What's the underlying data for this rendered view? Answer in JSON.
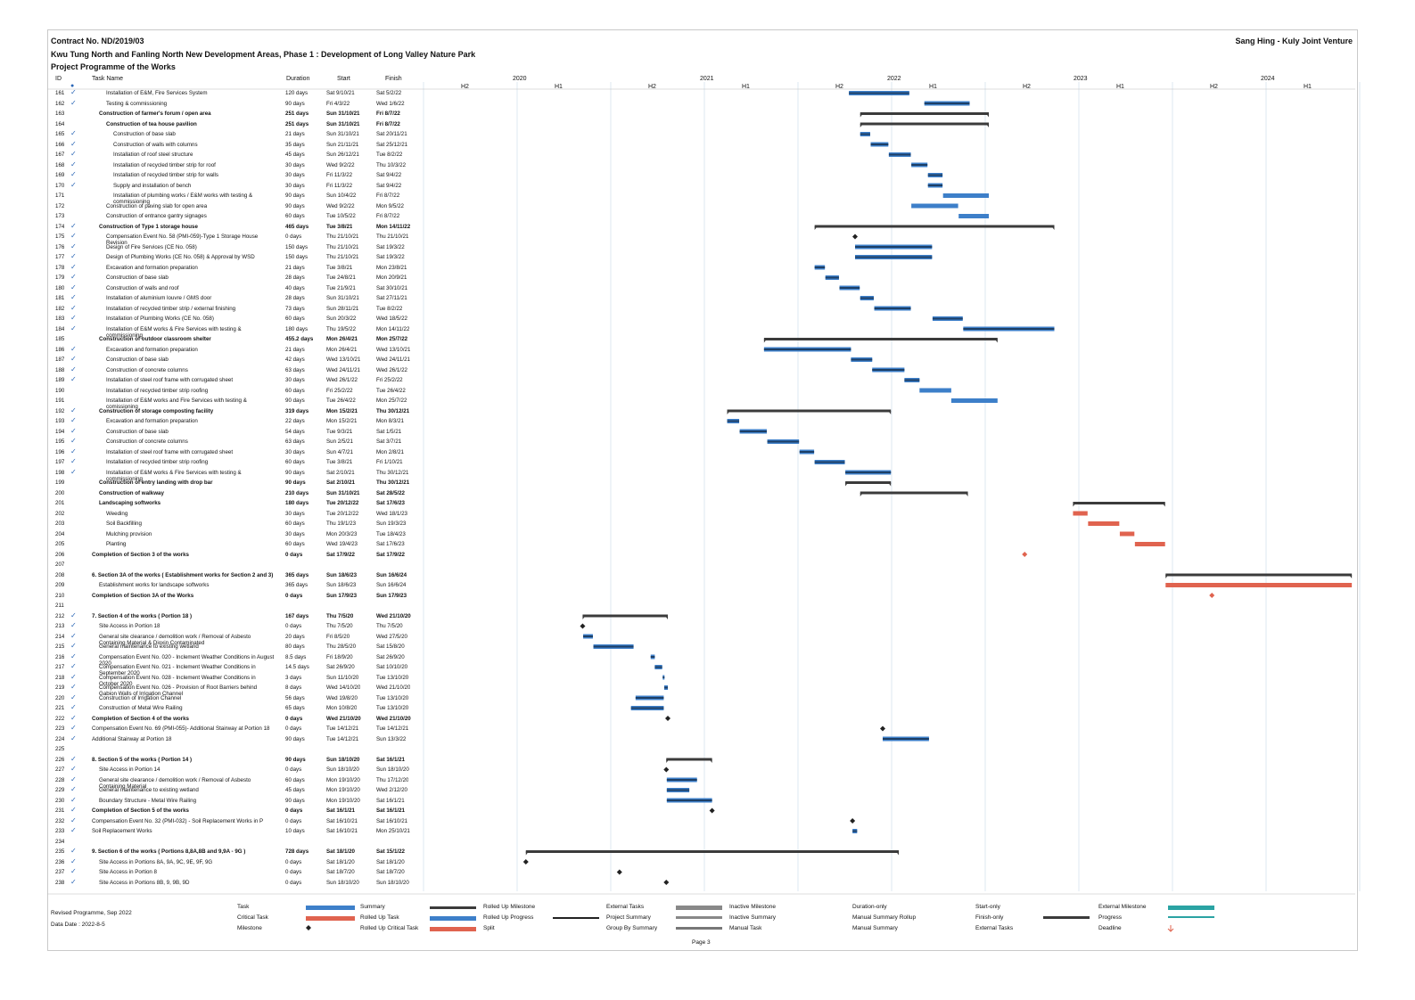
{
  "header": {
    "contract": "Contract No. ND/2019/03",
    "project": "Kwu Tung North and Fanling North New Development Areas, Phase 1 : Development of Long Valley Nature Park",
    "programme": "Project Programme of the Works",
    "company": "Sang Hing - Kuly Joint Venture"
  },
  "columns": {
    "id": "ID",
    "task": "Task Name",
    "duration": "Duration",
    "start": "Start",
    "finish": "Finish"
  },
  "timeline": {
    "years": [
      "2020",
      "2021",
      "2022",
      "2023",
      "2024"
    ],
    "halves": [
      "H2",
      "H1",
      "H2",
      "H1",
      "H2",
      "H1",
      "H2",
      "H1",
      "H2",
      "H1"
    ]
  },
  "tasks": [
    {
      "id": "161",
      "name": "Installation of E&M, Fire Services System",
      "dur": "120 days",
      "start": "Sat 9/10/21",
      "finish": "Sat 5/2/22",
      "indent": 2,
      "bold": false,
      "done": true
    },
    {
      "id": "162",
      "name": "Testing & commissioning",
      "dur": "90 days",
      "start": "Fri 4/3/22",
      "finish": "Wed 1/6/22",
      "indent": 2,
      "bold": false,
      "done": true
    },
    {
      "id": "163",
      "name": "Construction of farmer's forum / open area",
      "dur": "251 days",
      "start": "Sun 31/10/21",
      "finish": "Fri 8/7/22",
      "indent": 1,
      "bold": true,
      "done": false
    },
    {
      "id": "164",
      "name": "Construction of tea house pavilion",
      "dur": "251 days",
      "start": "Sun 31/10/21",
      "finish": "Fri 8/7/22",
      "indent": 2,
      "bold": true,
      "done": false
    },
    {
      "id": "165",
      "name": "Construction of base slab",
      "dur": "21 days",
      "start": "Sun 31/10/21",
      "finish": "Sat 20/11/21",
      "indent": 3,
      "bold": false,
      "done": true
    },
    {
      "id": "166",
      "name": "Construction of walls with columns",
      "dur": "35 days",
      "start": "Sun 21/11/21",
      "finish": "Sat 25/12/21",
      "indent": 3,
      "bold": false,
      "done": true
    },
    {
      "id": "167",
      "name": "Installation of roof steel structure",
      "dur": "45 days",
      "start": "Sun 26/12/21",
      "finish": "Tue 8/2/22",
      "indent": 3,
      "bold": false,
      "done": true
    },
    {
      "id": "168",
      "name": "Installation of recycled timber strip for roof",
      "dur": "30 days",
      "start": "Wed 9/2/22",
      "finish": "Thu 10/3/22",
      "indent": 3,
      "bold": false,
      "done": true
    },
    {
      "id": "169",
      "name": "Installation of recycled timber strip for walls",
      "dur": "30 days",
      "start": "Fri 11/3/22",
      "finish": "Sat 9/4/22",
      "indent": 3,
      "bold": false,
      "done": true
    },
    {
      "id": "170",
      "name": "Supply and installation of bench",
      "dur": "30 days",
      "start": "Fri 11/3/22",
      "finish": "Sat 9/4/22",
      "indent": 3,
      "bold": false,
      "done": true
    },
    {
      "id": "171",
      "name": "Installation of plumbing works / E&M works with testing & commissioning",
      "dur": "90 days",
      "start": "Sun 10/4/22",
      "finish": "Fri 8/7/22",
      "indent": 3,
      "bold": false,
      "done": false
    },
    {
      "id": "172",
      "name": "Construction of paving slab for open area",
      "dur": "90 days",
      "start": "Wed 9/2/22",
      "finish": "Mon 9/5/22",
      "indent": 2,
      "bold": false,
      "done": false
    },
    {
      "id": "173",
      "name": "Construction of entrance gantry signages",
      "dur": "60 days",
      "start": "Tue 10/5/22",
      "finish": "Fri 8/7/22",
      "indent": 2,
      "bold": false,
      "done": false
    },
    {
      "id": "174",
      "name": "Construction of Type 1 storage house",
      "dur": "465 days",
      "start": "Tue 3/8/21",
      "finish": "Mon 14/11/22",
      "indent": 1,
      "bold": true,
      "done": true
    },
    {
      "id": "175",
      "name": "Compensation Event No. 58 (PMI-059)-Type 1 Storage House Revision",
      "dur": "0 days",
      "start": "Thu 21/10/21",
      "finish": "Thu 21/10/21",
      "indent": 2,
      "bold": false,
      "done": true
    },
    {
      "id": "176",
      "name": "Design of Fire Services (CE No. 058)",
      "dur": "150 days",
      "start": "Thu 21/10/21",
      "finish": "Sat 19/3/22",
      "indent": 2,
      "bold": false,
      "done": true
    },
    {
      "id": "177",
      "name": "Design of Plumbing Works (CE No. 058) & Approval by WSD",
      "dur": "150 days",
      "start": "Thu 21/10/21",
      "finish": "Sat 19/3/22",
      "indent": 2,
      "bold": false,
      "done": true
    },
    {
      "id": "178",
      "name": "Excavation and formation preparation",
      "dur": "21 days",
      "start": "Tue 3/8/21",
      "finish": "Mon 23/8/21",
      "indent": 2,
      "bold": false,
      "done": true
    },
    {
      "id": "179",
      "name": "Construction of base slab",
      "dur": "28 days",
      "start": "Tue 24/8/21",
      "finish": "Mon 20/9/21",
      "indent": 2,
      "bold": false,
      "done": true
    },
    {
      "id": "180",
      "name": "Construction of walls and roof",
      "dur": "40 days",
      "start": "Tue 21/9/21",
      "finish": "Sat 30/10/21",
      "indent": 2,
      "bold": false,
      "done": true
    },
    {
      "id": "181",
      "name": "Installation of aluminium louvre / GMS door",
      "dur": "28 days",
      "start": "Sun 31/10/21",
      "finish": "Sat 27/11/21",
      "indent": 2,
      "bold": false,
      "done": true
    },
    {
      "id": "182",
      "name": "Installation of recycled timber strip / external finishing",
      "dur": "73 days",
      "start": "Sun 28/11/21",
      "finish": "Tue 8/2/22",
      "indent": 2,
      "bold": false,
      "done": true
    },
    {
      "id": "183",
      "name": "Installation of Plumbing Works (CE No. 058)",
      "dur": "60 days",
      "start": "Sun 20/3/22",
      "finish": "Wed 18/5/22",
      "indent": 2,
      "bold": false,
      "done": true
    },
    {
      "id": "184",
      "name": "Installation of E&M works & Fire Services with testing & commissioning",
      "dur": "180 days",
      "start": "Thu 19/5/22",
      "finish": "Mon 14/11/22",
      "indent": 2,
      "bold": false,
      "done": true
    },
    {
      "id": "185",
      "name": "Construction of outdoor classroom shelter",
      "dur": "455.2 days",
      "start": "Mon 26/4/21",
      "finish": "Mon 25/7/22",
      "indent": 1,
      "bold": true,
      "done": false
    },
    {
      "id": "186",
      "name": "Excavation and formation preparation",
      "dur": "21 days",
      "start": "Mon 26/4/21",
      "finish": "Wed 13/10/21",
      "indent": 2,
      "bold": false,
      "done": true
    },
    {
      "id": "187",
      "name": "Construction of base slab",
      "dur": "42 days",
      "start": "Wed 13/10/21",
      "finish": "Wed 24/11/21",
      "indent": 2,
      "bold": false,
      "done": true
    },
    {
      "id": "188",
      "name": "Construction of concrete columns",
      "dur": "63 days",
      "start": "Wed 24/11/21",
      "finish": "Wed 26/1/22",
      "indent": 2,
      "bold": false,
      "done": true
    },
    {
      "id": "189",
      "name": "Installation of steel roof frame with corrugated sheet",
      "dur": "30 days",
      "start": "Wed 26/1/22",
      "finish": "Fri 25/2/22",
      "indent": 2,
      "bold": false,
      "done": true
    },
    {
      "id": "190",
      "name": "Installation of recycled timber strip roofing",
      "dur": "60 days",
      "start": "Fri 25/2/22",
      "finish": "Tue 26/4/22",
      "indent": 2,
      "bold": false,
      "done": false
    },
    {
      "id": "191",
      "name": "Installation of E&M works and Fire Services with testing & comissioning",
      "dur": "90 days",
      "start": "Tue 26/4/22",
      "finish": "Mon 25/7/22",
      "indent": 2,
      "bold": false,
      "done": false
    },
    {
      "id": "192",
      "name": "Construction of storage composting facility",
      "dur": "319 days",
      "start": "Mon 15/2/21",
      "finish": "Thu 30/12/21",
      "indent": 1,
      "bold": true,
      "done": true
    },
    {
      "id": "193",
      "name": "Excavation and formation preparation",
      "dur": "22 days",
      "start": "Mon 15/2/21",
      "finish": "Mon 8/3/21",
      "indent": 2,
      "bold": false,
      "done": true
    },
    {
      "id": "194",
      "name": "Construction of base slab",
      "dur": "54 days",
      "start": "Tue 9/3/21",
      "finish": "Sat 1/5/21",
      "indent": 2,
      "bold": false,
      "done": true
    },
    {
      "id": "195",
      "name": "Construction of concrete columns",
      "dur": "63 days",
      "start": "Sun 2/5/21",
      "finish": "Sat 3/7/21",
      "indent": 2,
      "bold": false,
      "done": true
    },
    {
      "id": "196",
      "name": "Installation of steel roof frame with corrugated sheet",
      "dur": "30 days",
      "start": "Sun 4/7/21",
      "finish": "Mon 2/8/21",
      "indent": 2,
      "bold": false,
      "done": true
    },
    {
      "id": "197",
      "name": "Installation of recycled timber strip roofing",
      "dur": "60 days",
      "start": "Tue 3/8/21",
      "finish": "Fri 1/10/21",
      "indent": 2,
      "bold": false,
      "done": true
    },
    {
      "id": "198",
      "name": "Installation of E&M works & Fire Services with testing & commissioning",
      "dur": "90 days",
      "start": "Sat 2/10/21",
      "finish": "Thu 30/12/21",
      "indent": 2,
      "bold": false,
      "done": true
    },
    {
      "id": "199",
      "name": "Construction of entry landing with drop bar",
      "dur": "90 days",
      "start": "Sat 2/10/21",
      "finish": "Thu 30/12/21",
      "indent": 1,
      "bold": true,
      "done": false
    },
    {
      "id": "200",
      "name": "Construction of walkway",
      "dur": "210 days",
      "start": "Sun 31/10/21",
      "finish": "Sat 28/5/22",
      "indent": 1,
      "bold": true,
      "done": false
    },
    {
      "id": "201",
      "name": "Landscaping softworks",
      "dur": "180 days",
      "start": "Tue 20/12/22",
      "finish": "Sat 17/6/23",
      "indent": 1,
      "bold": true,
      "done": false
    },
    {
      "id": "202",
      "name": "Weeding",
      "dur": "30 days",
      "start": "Tue 20/12/22",
      "finish": "Wed 18/1/23",
      "indent": 2,
      "bold": false,
      "done": false
    },
    {
      "id": "203",
      "name": "Soil Backfilling",
      "dur": "60 days",
      "start": "Thu 19/1/23",
      "finish": "Sun 19/3/23",
      "indent": 2,
      "bold": false,
      "done": false
    },
    {
      "id": "204",
      "name": "Mulching provision",
      "dur": "30 days",
      "start": "Mon 20/3/23",
      "finish": "Tue 18/4/23",
      "indent": 2,
      "bold": false,
      "done": false
    },
    {
      "id": "205",
      "name": "Planting",
      "dur": "60 days",
      "start": "Wed 19/4/23",
      "finish": "Sat 17/6/23",
      "indent": 2,
      "bold": false,
      "done": false
    },
    {
      "id": "206",
      "name": "Completion of Section 3 of the works",
      "dur": "0 days",
      "start": "Sat 17/9/22",
      "finish": "Sat 17/9/22",
      "indent": 0,
      "bold": true,
      "done": false
    },
    {
      "id": "207",
      "name": "",
      "dur": "",
      "start": "",
      "finish": "",
      "indent": 0,
      "bold": false,
      "done": false
    },
    {
      "id": "208",
      "name": "6. Section 3A of the works ( Establishment works for Section 2 and 3)",
      "dur": "365 days",
      "start": "Sun 18/6/23",
      "finish": "Sun 16/6/24",
      "indent": 0,
      "bold": true,
      "done": false
    },
    {
      "id": "209",
      "name": "Establishment works for landscape softworks",
      "dur": "365 days",
      "start": "Sun 18/6/23",
      "finish": "Sun 16/6/24",
      "indent": 1,
      "bold": false,
      "done": false
    },
    {
      "id": "210",
      "name": "Completion of Section 3A of the Works",
      "dur": "0 days",
      "start": "Sun 17/9/23",
      "finish": "Sun 17/9/23",
      "indent": 0,
      "bold": true,
      "done": false
    },
    {
      "id": "211",
      "name": "",
      "dur": "",
      "start": "",
      "finish": "",
      "indent": 0,
      "bold": false,
      "done": false
    },
    {
      "id": "212",
      "name": "7. Section 4 of the works ( Portion 18 )",
      "dur": "167 days",
      "start": "Thu 7/5/20",
      "finish": "Wed 21/10/20",
      "indent": 0,
      "bold": true,
      "done": true
    },
    {
      "id": "213",
      "name": "Site Access in Portion 18",
      "dur": "0 days",
      "start": "Thu 7/5/20",
      "finish": "Thu 7/5/20",
      "indent": 1,
      "bold": false,
      "done": true
    },
    {
      "id": "214",
      "name": "General site clearance / demolition work / Removal of Asbesto Containing Material & Dioxin Contaminated",
      "dur": "20 days",
      "start": "Fri 8/5/20",
      "finish": "Wed 27/5/20",
      "indent": 1,
      "bold": false,
      "done": true
    },
    {
      "id": "215",
      "name": "General maintenance to existing wetland",
      "dur": "80 days",
      "start": "Thu 28/5/20",
      "finish": "Sat 15/8/20",
      "indent": 1,
      "bold": false,
      "done": true
    },
    {
      "id": "216",
      "name": "Compensation Event No. 020 - Inclement Weather Conditions in August 2020",
      "dur": "8.5 days",
      "start": "Fri 18/9/20",
      "finish": "Sat 26/9/20",
      "indent": 1,
      "bold": false,
      "done": true
    },
    {
      "id": "217",
      "name": "Compensation Event No. 021 - Inclement Weather Conditions in September 2020",
      "dur": "14.5 days",
      "start": "Sat 26/9/20",
      "finish": "Sat 10/10/20",
      "indent": 1,
      "bold": false,
      "done": true
    },
    {
      "id": "218",
      "name": "Compensation Event No. 028 - Inclement Weather Conditions in October 2020",
      "dur": "3 days",
      "start": "Sun 11/10/20",
      "finish": "Tue 13/10/20",
      "indent": 1,
      "bold": false,
      "done": true
    },
    {
      "id": "219",
      "name": "Compensation Event No. 026 - Provision of Root Barriers behind Gabion Walls of Irrigation Channel",
      "dur": "8 days",
      "start": "Wed 14/10/20",
      "finish": "Wed 21/10/20",
      "indent": 1,
      "bold": false,
      "done": true
    },
    {
      "id": "220",
      "name": "Construction of Irrigation Channel",
      "dur": "56 days",
      "start": "Wed 19/8/20",
      "finish": "Tue 13/10/20",
      "indent": 1,
      "bold": false,
      "done": true
    },
    {
      "id": "221",
      "name": "Construction of Metal Wire Railing",
      "dur": "65 days",
      "start": "Mon 10/8/20",
      "finish": "Tue 13/10/20",
      "indent": 1,
      "bold": false,
      "done": true
    },
    {
      "id": "222",
      "name": "Completion of Section 4 of the works",
      "dur": "0 days",
      "start": "Wed 21/10/20",
      "finish": "Wed 21/10/20",
      "indent": 0,
      "bold": true,
      "done": true
    },
    {
      "id": "223",
      "name": "Compensation Event No. 69 (PMI-055)- Additional Stairway at Portion 18",
      "dur": "0 days",
      "start": "Tue 14/12/21",
      "finish": "Tue 14/12/21",
      "indent": 0,
      "bold": false,
      "done": true
    },
    {
      "id": "224",
      "name": "Additional Stairway at Portion 18",
      "dur": "90 days",
      "start": "Tue 14/12/21",
      "finish": "Sun 13/3/22",
      "indent": 0,
      "bold": false,
      "done": true
    },
    {
      "id": "225",
      "name": "",
      "dur": "",
      "start": "",
      "finish": "",
      "indent": 0,
      "bold": false,
      "done": false
    },
    {
      "id": "226",
      "name": "8. Section 5 of the works ( Portion 14 )",
      "dur": "90 days",
      "start": "Sun 18/10/20",
      "finish": "Sat 16/1/21",
      "indent": 0,
      "bold": true,
      "done": true
    },
    {
      "id": "227",
      "name": "Site Access in Portion 14",
      "dur": "0 days",
      "start": "Sun 18/10/20",
      "finish": "Sun 18/10/20",
      "indent": 1,
      "bold": false,
      "done": true
    },
    {
      "id": "228",
      "name": "General site clearance / demolition work / Removal of Asbesto Containing Material",
      "dur": "60 days",
      "start": "Mon 19/10/20",
      "finish": "Thu 17/12/20",
      "indent": 1,
      "bold": false,
      "done": true
    },
    {
      "id": "229",
      "name": "General maintenance to existing wetland",
      "dur": "45 days",
      "start": "Mon 19/10/20",
      "finish": "Wed 2/12/20",
      "indent": 1,
      "bold": false,
      "done": true
    },
    {
      "id": "230",
      "name": "Boundary Structure - Metal Wire Railing",
      "dur": "90 days",
      "start": "Mon 19/10/20",
      "finish": "Sat 16/1/21",
      "indent": 1,
      "bold": false,
      "done": true
    },
    {
      "id": "231",
      "name": "Completion of Section 5 of the works",
      "dur": "0 days",
      "start": "Sat 16/1/21",
      "finish": "Sat 16/1/21",
      "indent": 0,
      "bold": true,
      "done": true
    },
    {
      "id": "232",
      "name": "Compensation Event No. 32 (PMI-032) - Soil Replacement Works in P",
      "dur": "0 days",
      "start": "Sat 16/10/21",
      "finish": "Sat 16/10/21",
      "indent": 0,
      "bold": false,
      "done": true
    },
    {
      "id": "233",
      "name": "Soil Replacement Works",
      "dur": "10 days",
      "start": "Sat 16/10/21",
      "finish": "Mon 25/10/21",
      "indent": 0,
      "bold": false,
      "done": true
    },
    {
      "id": "234",
      "name": "",
      "dur": "",
      "start": "",
      "finish": "",
      "indent": 0,
      "bold": false,
      "done": false
    },
    {
      "id": "235",
      "name": "9. Section 6 of the works ( Portions 8,8A,8B and 9,9A - 9G )",
      "dur": "728 days",
      "start": "Sat 18/1/20",
      "finish": "Sat 15/1/22",
      "indent": 0,
      "bold": true,
      "done": true
    },
    {
      "id": "236",
      "name": "Site Access in Portions 8A, 9A, 9C, 9E, 9F, 9G",
      "dur": "0 days",
      "start": "Sat 18/1/20",
      "finish": "Sat 18/1/20",
      "indent": 1,
      "bold": false,
      "done": true
    },
    {
      "id": "237",
      "name": "Site Access in Portion 8",
      "dur": "0 days",
      "start": "Sat 18/7/20",
      "finish": "Sat 18/7/20",
      "indent": 1,
      "bold": false,
      "done": true
    },
    {
      "id": "238",
      "name": "Site Access in Portions 8B, 9, 9B, 9D",
      "dur": "0 days",
      "start": "Sun 18/10/20",
      "finish": "Sun 18/10/20",
      "indent": 1,
      "bold": false,
      "done": true
    }
  ],
  "legend": {
    "col1": [
      "Task",
      "Critical Task",
      "Milestone"
    ],
    "col2": [
      "Summary",
      "Rolled Up Task",
      "Rolled Up Critical Task"
    ],
    "col3": [
      "Rolled Up Milestone",
      "Rolled Up Progress",
      "Split"
    ],
    "col4": [
      "External Tasks",
      "Project Summary",
      "Group By Summary"
    ],
    "col5": [
      "Inactive Milestone",
      "Inactive Summary",
      "Manual Task"
    ],
    "col6": [
      "Duration-only",
      "Manual Summary Rollup",
      "Manual Summary"
    ],
    "col7": [
      "Start-only",
      "Finish-only",
      "External Tasks"
    ],
    "col8": [
      "External Milestone",
      "Progress",
      "Deadline"
    ]
  },
  "footer": {
    "revised": "Revised Programme, Sep 2022",
    "date": "Data Date : 2022-8-5",
    "page": "Page 3"
  },
  "colors": {
    "task": "#3d7fc9",
    "critical": "#e0634f",
    "summary": "#3b3b3b",
    "progress": "#1d3f66",
    "link": "#6fa5d8"
  }
}
